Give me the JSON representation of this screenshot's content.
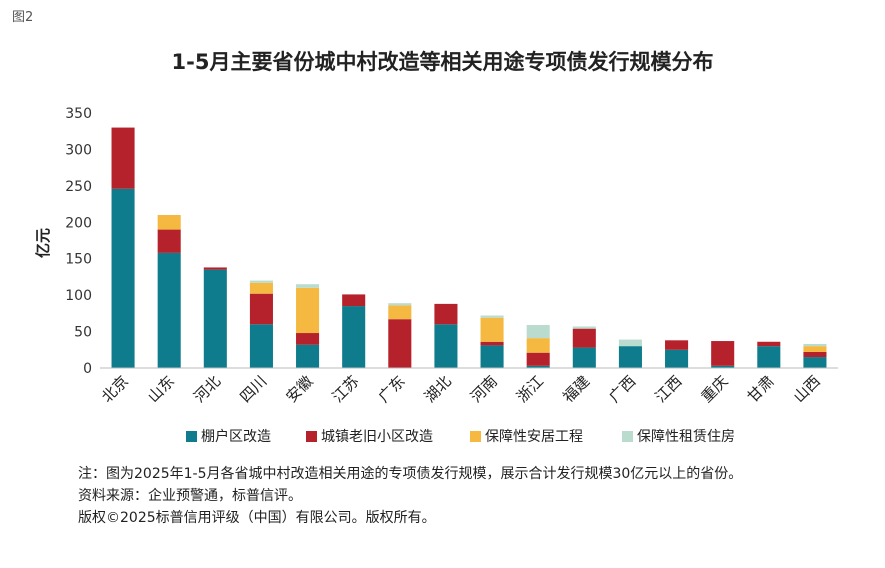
{
  "figure_label": "图2",
  "notes": [
    "注：图为2025年1-5月各省城中村改造相关用途的专项债发行规模，展示合计发行规模30亿元以上的省份。",
    "资料来源：企业预警通，标普信评。",
    "版权©2025标普信用评级（中国）有限公司。版权所有。"
  ],
  "chart_data": {
    "type": "bar",
    "stacked": true,
    "title": "1-5月主要省份城中村改造等相关用途专项债发行规模分布",
    "ylabel": "亿元",
    "xlabel": "",
    "ylim": [
      0,
      350
    ],
    "yticks": [
      0,
      50,
      100,
      150,
      200,
      250,
      300,
      350
    ],
    "grid": false,
    "legend_position": "bottom",
    "categories": [
      "北京",
      "山东",
      "河北",
      "四川",
      "安徽",
      "江苏",
      "广东",
      "湖北",
      "河南",
      "浙江",
      "福建",
      "广西",
      "江西",
      "重庆",
      "甘肃",
      "山西"
    ],
    "series": [
      {
        "name": "棚户区改造",
        "color": "#0e7c8c",
        "values": [
          246,
          158,
          135,
          60,
          32,
          85,
          0,
          60,
          31,
          3,
          28,
          30,
          25,
          3,
          30,
          15
        ]
      },
      {
        "name": "城镇老旧小区改造",
        "color": "#b5222b",
        "values": [
          84,
          32,
          3,
          42,
          16,
          16,
          67,
          28,
          5,
          18,
          26,
          0,
          13,
          34,
          6,
          7
        ]
      },
      {
        "name": "保障性安居工程",
        "color": "#f5b942",
        "values": [
          0,
          20,
          0,
          15,
          62,
          0,
          19,
          0,
          33,
          20,
          0,
          0,
          0,
          0,
          0,
          8
        ]
      },
      {
        "name": "保障性租赁住房",
        "color": "#b9dccf",
        "values": [
          0,
          0,
          0,
          3,
          5,
          0,
          3,
          0,
          3,
          18,
          3,
          9,
          0,
          0,
          0,
          3
        ]
      }
    ]
  }
}
